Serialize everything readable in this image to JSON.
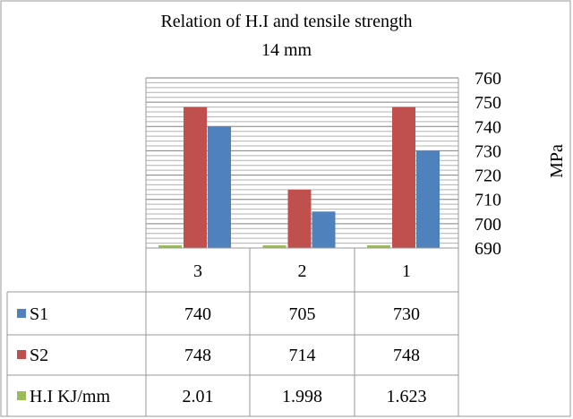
{
  "chart_data": {
    "type": "bar",
    "title": "Relation of H.I and tensile strength",
    "subtitle": "14 mm",
    "ylabel": "MPa",
    "ylim": [
      690,
      760
    ],
    "y_ticks": [
      "760",
      "750",
      "740",
      "730",
      "720",
      "710",
      "700",
      "690"
    ],
    "y_axis_side": "right",
    "grid": true,
    "categories": [
      "3",
      "2",
      "1"
    ],
    "series": [
      {
        "name": "S1",
        "values": [
          740,
          705,
          730
        ],
        "labels": [
          "740",
          "705",
          "730"
        ],
        "color": "#4f81bd"
      },
      {
        "name": "S2",
        "values": [
          748,
          714,
          748
        ],
        "labels": [
          "748",
          "714",
          "748"
        ],
        "color": "#c0504d"
      },
      {
        "name": "H.I KJ/mm",
        "values": [
          2.01,
          1.998,
          1.623
        ],
        "labels": [
          "2.01",
          "1.998",
          "1.623"
        ],
        "color": "#9bbb59"
      }
    ],
    "data_table": true,
    "legend": "data-table"
  }
}
